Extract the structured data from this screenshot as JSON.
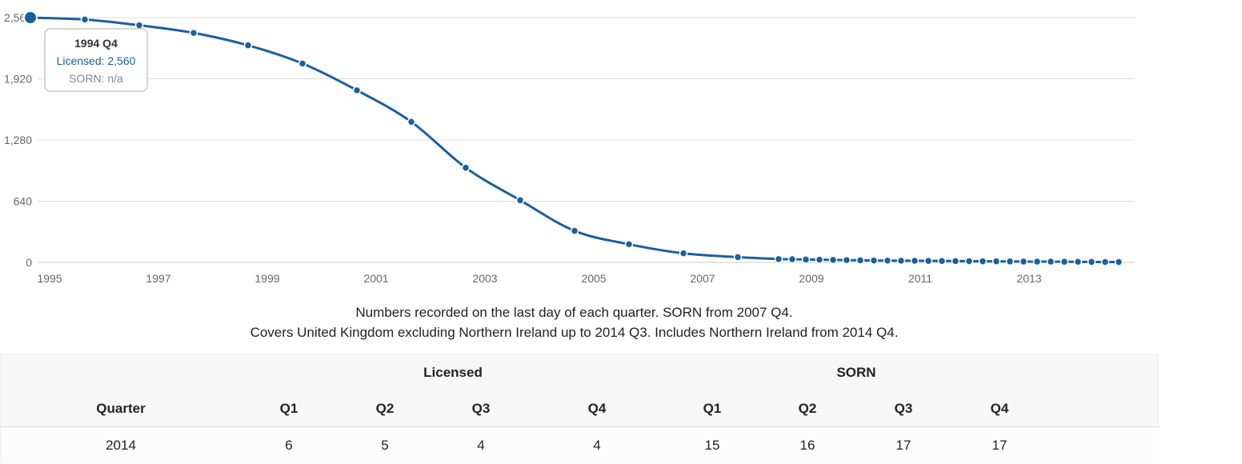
{
  "chart_data": {
    "type": "line",
    "title": "",
    "xlabel": "",
    "ylabel": "",
    "ylim": [
      0,
      2560
    ],
    "yticks": [
      "0",
      "640",
      "1,280",
      "1,920",
      "2,560"
    ],
    "xticks": [
      "1995",
      "1997",
      "1999",
      "2001",
      "2003",
      "2005",
      "2007",
      "2009",
      "2011",
      "2013"
    ],
    "grid": true,
    "series": [
      {
        "name": "Licensed",
        "color": "#1a5fa0",
        "points": [
          {
            "x": "1994 Q4",
            "y": 2560
          },
          {
            "x": "1995 Q4",
            "y": 2540
          },
          {
            "x": "1996 Q4",
            "y": 2480
          },
          {
            "x": "1997 Q4",
            "y": 2400
          },
          {
            "x": "1998 Q4",
            "y": 2270
          },
          {
            "x": "1999 Q4",
            "y": 2080
          },
          {
            "x": "2000 Q4",
            "y": 1800
          },
          {
            "x": "2001 Q4",
            "y": 1470
          },
          {
            "x": "2002 Q4",
            "y": 990
          },
          {
            "x": "2003 Q4",
            "y": 650
          },
          {
            "x": "2004 Q4",
            "y": 330
          },
          {
            "x": "2005 Q4",
            "y": 190
          },
          {
            "x": "2006 Q4",
            "y": 95
          },
          {
            "x": "2007 Q4",
            "y": 55
          },
          {
            "x": "2008 Q3",
            "y": 35
          },
          {
            "x": "2008 Q4",
            "y": 33
          },
          {
            "x": "2009 Q1",
            "y": 30
          },
          {
            "x": "2009 Q2",
            "y": 28
          },
          {
            "x": "2009 Q3",
            "y": 26
          },
          {
            "x": "2009 Q4",
            "y": 24
          },
          {
            "x": "2010 Q1",
            "y": 22
          },
          {
            "x": "2010 Q2",
            "y": 20
          },
          {
            "x": "2010 Q3",
            "y": 19
          },
          {
            "x": "2010 Q4",
            "y": 18
          },
          {
            "x": "2011 Q1",
            "y": 17
          },
          {
            "x": "2011 Q2",
            "y": 16
          },
          {
            "x": "2011 Q3",
            "y": 15
          },
          {
            "x": "2011 Q4",
            "y": 14
          },
          {
            "x": "2012 Q1",
            "y": 13
          },
          {
            "x": "2012 Q2",
            "y": 12
          },
          {
            "x": "2012 Q3",
            "y": 11
          },
          {
            "x": "2012 Q4",
            "y": 10
          },
          {
            "x": "2013 Q1",
            "y": 9
          },
          {
            "x": "2013 Q2",
            "y": 8
          },
          {
            "x": "2013 Q3",
            "y": 8
          },
          {
            "x": "2013 Q4",
            "y": 7
          },
          {
            "x": "2014 Q1",
            "y": 6
          },
          {
            "x": "2014 Q2",
            "y": 5
          },
          {
            "x": "2014 Q3",
            "y": 4
          },
          {
            "x": "2014 Q4",
            "y": 4
          }
        ]
      }
    ]
  },
  "tooltip": {
    "title": "1994 Q4",
    "licensed": "Licensed: 2,560",
    "sorn": "SORN: n/a"
  },
  "notes": {
    "line1": "Numbers recorded on the last day of each quarter. SORN from 2007 Q4.",
    "line2": "Covers United Kingdom excluding Northern Ireland up to 2014 Q3. Includes Northern Ireland from 2014 Q4."
  },
  "table": {
    "group_licensed": "Licensed",
    "group_sorn": "SORN",
    "col_quarter": "Quarter",
    "licensed_cols": [
      "Q1",
      "Q2",
      "Q3",
      "Q4"
    ],
    "sorn_cols": [
      "Q1",
      "Q2",
      "Q3",
      "Q4"
    ],
    "rows": [
      {
        "quarter": "2014",
        "licensed": [
          "6",
          "5",
          "4",
          "4"
        ],
        "sorn": [
          "15",
          "16",
          "17",
          "17"
        ]
      }
    ]
  }
}
